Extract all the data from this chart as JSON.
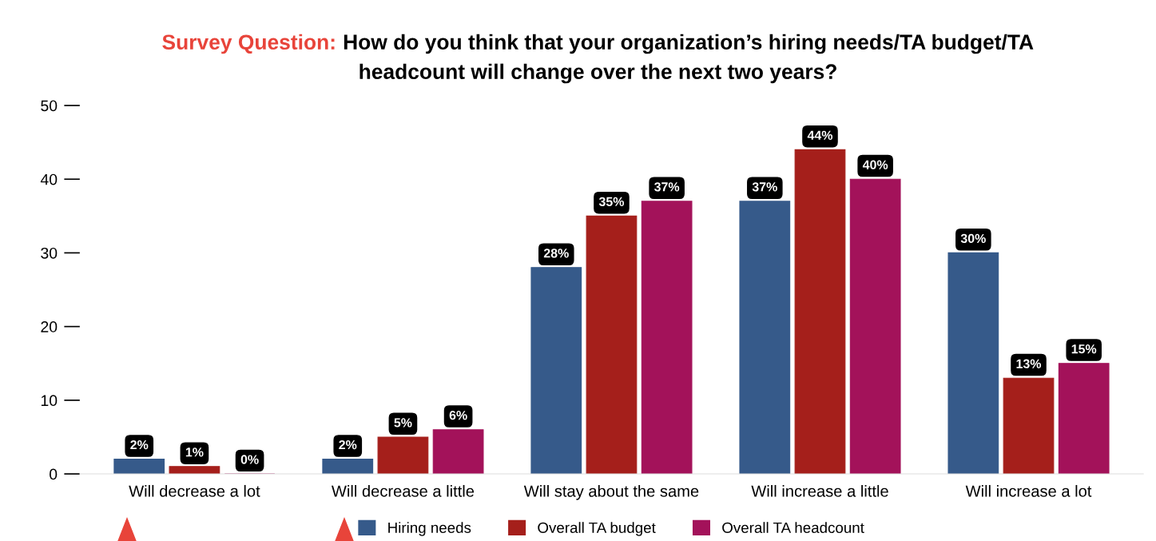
{
  "chart_data": {
    "type": "bar",
    "title": "Survey Question:",
    "subtitle": "How do you think that your organization’s hiring needs/TA budget/TA headcount will change over the next two years?",
    "categories": [
      "Will decrease a lot",
      "Will decrease a little",
      "Will stay about the same",
      "Will increase a little",
      "Will increase a lot"
    ],
    "series": [
      {
        "name": "Hiring needs",
        "color": "#365a8a",
        "values": [
          2,
          2,
          28,
          37,
          30
        ],
        "value_labels": [
          "2%",
          "2%",
          "28%",
          "37%",
          "30%"
        ]
      },
      {
        "name": "Overall TA budget",
        "color": "#a51f1b",
        "values": [
          1,
          5,
          35,
          44,
          13
        ],
        "value_labels": [
          "1%",
          "5%",
          "35%",
          "44%",
          "13%"
        ]
      },
      {
        "name": "Overall TA headcount",
        "color": "#a3125a",
        "values": [
          0,
          6,
          37,
          40,
          15
        ],
        "value_labels": [
          "0%",
          "6%",
          "37%",
          "40%",
          "15%"
        ]
      }
    ],
    "ylim": [
      0,
      50
    ],
    "yticks": [
      0,
      10,
      20,
      30,
      40,
      50
    ],
    "grid": false,
    "legend": "bottom"
  }
}
